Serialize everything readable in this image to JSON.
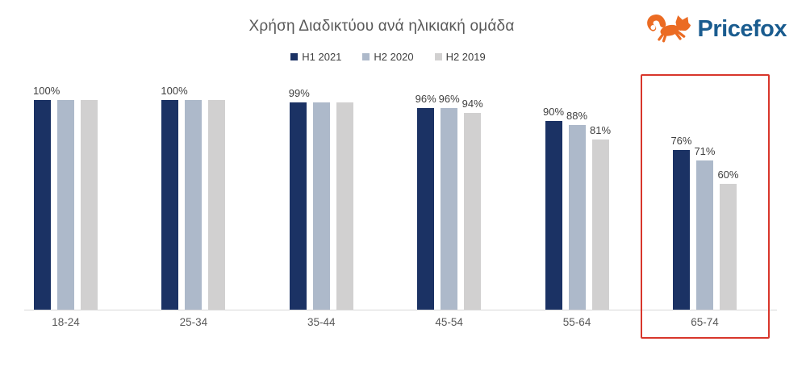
{
  "title": "Χρήση Διαδικτύου ανά ηλικιακή ομάδα",
  "logo": {
    "text": "Pricefox",
    "brand_color": "#1A5C8F",
    "fox_color": "#EB6B23"
  },
  "chart_data": {
    "type": "bar",
    "title": "Χρήση Διαδικτύου ανά ηλικιακή ομάδα",
    "categories": [
      "18-24",
      "25-34",
      "35-44",
      "45-54",
      "55-64",
      "65-74"
    ],
    "series": [
      {
        "name": "H1 2021",
        "color": "#1B3264",
        "values": [
          100,
          100,
          99,
          96,
          90,
          76
        ],
        "labels": [
          "100%",
          "100%",
          "99%",
          "96%",
          "90%",
          "76%"
        ]
      },
      {
        "name": "H2 2020",
        "color": "#ADB9CA",
        "values": [
          100,
          100,
          99,
          96,
          88,
          71
        ],
        "labels": [
          "",
          "",
          "",
          "96%",
          "88%",
          "71%"
        ]
      },
      {
        "name": "H2 2019",
        "color": "#D1D0D0",
        "values": [
          100,
          100,
          99,
          94,
          81,
          60
        ],
        "labels": [
          "",
          "",
          "",
          "94%",
          "81%",
          "60%"
        ]
      }
    ],
    "ylim": [
      0,
      100
    ],
    "value_format": "percent",
    "grid": false,
    "y_axis_visible": false,
    "legend_position": "top",
    "highlight": {
      "category": "65-74",
      "color": "#D8362B"
    }
  }
}
